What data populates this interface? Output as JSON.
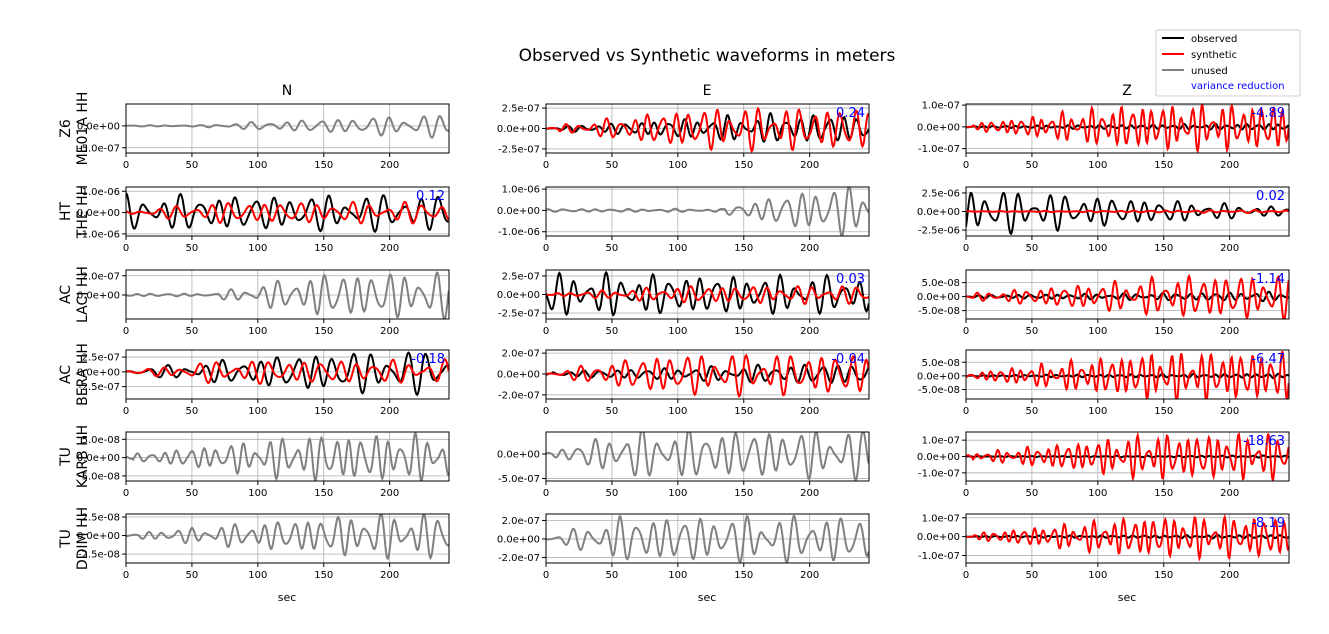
{
  "chart_data": {
    "type": "line",
    "title": "Observed vs Synthetic waveforms in meters",
    "column_titles": [
      "N",
      "E",
      "Z"
    ],
    "xlabel": "sec",
    "xlim": [
      0,
      245
    ],
    "xticks": [
      0,
      50,
      100,
      150,
      200
    ],
    "legend": {
      "placement": "top-right",
      "entries": [
        {
          "label": "observed",
          "color": "#000000"
        },
        {
          "label": "synthetic",
          "color": "#ff0000"
        },
        {
          "label": "unused",
          "color": "#808080"
        },
        {
          "label": "variance reduction",
          "color": "#0000ff"
        }
      ]
    },
    "stations": [
      {
        "label": "Z6\nME01A HH",
        "panels": [
          {
            "unused": true,
            "ylim": [
              -6.2e-07,
              5e-07
            ],
            "yticks": [
              {
                "v": 0,
                "t": "0.0e+00"
              },
              {
                "v": -5e-07,
                "t": "-5.0e-07"
              }
            ],
            "vr": "",
            "seed": 11,
            "onset": 60,
            "growth": 1.0,
            "period": 13,
            "obs_amp": 2.5e-07,
            "syn_amp": 0,
            "syn_growth": 0
          },
          {
            "unused": false,
            "ylim": [
              -3e-07,
              3e-07
            ],
            "yticks": [
              {
                "v": 2.5e-07,
                "t": "2.5e-07"
              },
              {
                "v": 0,
                "t": "0.0e+00"
              },
              {
                "v": -2.5e-07,
                "t": "-2.5e-07"
              }
            ],
            "vr": "0.24",
            "seed": 12,
            "onset": 10,
            "growth": 1.3,
            "period": 11,
            "obs_amp": 1.8e-07,
            "syn_amp": 2.6e-07,
            "syn_growth": 2.0
          },
          {
            "unused": false,
            "ylim": [
              -1.2e-07,
              1.05e-07
            ],
            "yticks": [
              {
                "v": 1e-07,
                "t": "1.0e-07"
              },
              {
                "v": 0,
                "t": "0.0e+00"
              },
              {
                "v": -1e-07,
                "t": "-1.0e-07"
              }
            ],
            "vr": "-4.89",
            "seed": 13,
            "onset": 5,
            "growth": 0.4,
            "period": 8,
            "obs_amp": 3e-08,
            "syn_amp": 1.05e-07,
            "syn_growth": 1.7
          }
        ]
      },
      {
        "label": "HT\nTHE HH",
        "panels": [
          {
            "unused": false,
            "ylim": [
              -1.1e-06,
              1.2e-06
            ],
            "yticks": [
              {
                "v": 1e-06,
                "t": "1.0e-06"
              },
              {
                "v": 0,
                "t": "0.0e+00"
              },
              {
                "v": -1e-06,
                "t": "-1.0e-06"
              }
            ],
            "vr": "0.12",
            "seed": 21,
            "onset": 0,
            "growth": 0.0,
            "period": 14,
            "obs_amp": 1e-06,
            "syn_amp": 5e-07,
            "syn_growth": 3.0
          },
          {
            "unused": true,
            "ylim": [
              -1.2e-06,
              1.1e-06
            ],
            "yticks": [
              {
                "v": 1e-06,
                "t": "1.0e-06"
              },
              {
                "v": 0,
                "t": "0.0e+00"
              },
              {
                "v": -1e-06,
                "t": "-1.0e-06"
              }
            ],
            "vr": "",
            "seed": 22,
            "onset": 135,
            "growth": 1.2,
            "period": 12,
            "obs_amp": 1.2e-06,
            "syn_amp": 0,
            "syn_growth": 0
          },
          {
            "unused": false,
            "ylim": [
              -3.3e-06,
              3.3e-06
            ],
            "yticks": [
              {
                "v": 2.5e-06,
                "t": "2.5e-06"
              },
              {
                "v": 0,
                "t": "0.0e+00"
              },
              {
                "v": -2.5e-06,
                "t": "-2.5e-06"
              }
            ],
            "vr": "0.02",
            "seed": 23,
            "onset": 0,
            "growth": -1.2,
            "period": 12,
            "obs_amp": 3.2e-06,
            "syn_amp": 2e-07,
            "syn_growth": 1.0
          }
        ]
      },
      {
        "label": "AC\nLACI HH",
        "panels": [
          {
            "unused": true,
            "ylim": [
              -2.5e-07,
              2.6e-07
            ],
            "yticks": [
              {
                "v": 2e-07,
                "t": "2.0e-07"
              },
              {
                "v": 0,
                "t": "0.0e+00"
              }
            ],
            "vr": "",
            "seed": 31,
            "onset": 70,
            "growth": 1.8,
            "period": 12,
            "obs_amp": 2.4e-07,
            "syn_amp": 0,
            "syn_growth": 0
          },
          {
            "unused": false,
            "ylim": [
              -3.3e-07,
              3.3e-07
            ],
            "yticks": [
              {
                "v": 2.5e-07,
                "t": "2.5e-07"
              },
              {
                "v": 0,
                "t": "0.0e+00"
              },
              {
                "v": -2.5e-07,
                "t": "-2.5e-07"
              }
            ],
            "vr": "0.03",
            "seed": 32,
            "onset": 5,
            "growth": -0.2,
            "period": 12,
            "obs_amp": 2.9e-07,
            "syn_amp": 1.2e-07,
            "syn_growth": 2.0
          },
          {
            "unused": false,
            "ylim": [
              -8e-08,
              9.5e-08
            ],
            "yticks": [
              {
                "v": 5e-08,
                "t": "5.0e-08"
              },
              {
                "v": 0,
                "t": "0.0e+00"
              },
              {
                "v": -5e-08,
                "t": "-5.0e-08"
              }
            ],
            "vr": "-1.14",
            "seed": 33,
            "onset": 5,
            "growth": 0.3,
            "period": 10,
            "obs_amp": 4e-08,
            "syn_amp": 8e-08,
            "syn_growth": 1.2
          }
        ]
      },
      {
        "label": "AC\nBERA HH",
        "panels": [
          {
            "unused": false,
            "ylim": [
              -4.6e-07,
              3.7e-07
            ],
            "yticks": [
              {
                "v": 2.5e-07,
                "t": "2.5e-07"
              },
              {
                "v": 0,
                "t": "0.0e+00"
              },
              {
                "v": -2.5e-07,
                "t": "-2.5e-07"
              }
            ],
            "vr": "-0.18",
            "seed": 41,
            "onset": 5,
            "growth": 1.4,
            "period": 14,
            "obs_amp": 3.6e-07,
            "syn_amp": 2e-07,
            "syn_growth": 3.0
          },
          {
            "unused": false,
            "ylim": [
              -2.4e-07,
              2.3e-07
            ],
            "yticks": [
              {
                "v": 2e-07,
                "t": "2.0e-07"
              },
              {
                "v": 0,
                "t": "0.0e+00"
              },
              {
                "v": -2e-07,
                "t": "-2.0e-07"
              }
            ],
            "vr": "-0.04",
            "seed": 42,
            "onset": 5,
            "growth": 0.5,
            "period": 12,
            "obs_amp": 1.8e-07,
            "syn_amp": 2e-07,
            "syn_growth": 2.5
          },
          {
            "unused": false,
            "ylim": [
              -8.5e-08,
              9.5e-08
            ],
            "yticks": [
              {
                "v": 5e-08,
                "t": "5.0e-08"
              },
              {
                "v": 0,
                "t": "0.0e+00"
              },
              {
                "v": -5e-08,
                "t": "-5.0e-08"
              }
            ],
            "vr": "-6.47",
            "seed": 43,
            "onset": 5,
            "growth": 0.3,
            "period": 8,
            "obs_amp": 2e-08,
            "syn_amp": 9e-08,
            "syn_growth": 1.5
          }
        ]
      },
      {
        "label": "TU\nKARB HH",
        "panels": [
          {
            "unused": true,
            "ylim": [
              -6.4e-08,
              7e-08
            ],
            "yticks": [
              {
                "v": 5e-08,
                "t": "5.0e-08"
              },
              {
                "v": 0,
                "t": "0.0e+00"
              },
              {
                "v": -5e-08,
                "t": "-5.0e-08"
              }
            ],
            "vr": "",
            "seed": 51,
            "onset": 5,
            "growth": 1.5,
            "period": 10,
            "obs_amp": 6.5e-08,
            "syn_amp": 0,
            "syn_growth": 0
          },
          {
            "unused": true,
            "ylim": [
              -5.5e-07,
              4.5e-07
            ],
            "yticks": [
              {
                "v": 0,
                "t": "0.0e+00"
              },
              {
                "v": -5e-07,
                "t": "-5.0e-07"
              }
            ],
            "vr": "",
            "seed": 52,
            "onset": 5,
            "growth": 3.5,
            "period": 12,
            "obs_amp": 5e-07,
            "syn_amp": 0,
            "syn_growth": 0
          },
          {
            "unused": false,
            "ylim": [
              -1.5e-07,
              1.5e-07
            ],
            "yticks": [
              {
                "v": 1e-07,
                "t": "1.0e-07"
              },
              {
                "v": 0,
                "t": "0.0e+00"
              },
              {
                "v": -1e-07,
                "t": "-1.0e-07"
              }
            ],
            "vr": "-18.63",
            "seed": 53,
            "onset": 5,
            "growth": 0.3,
            "period": 8,
            "obs_amp": 1.5e-08,
            "syn_amp": 1.4e-07,
            "syn_growth": 1.5
          }
        ]
      },
      {
        "label": "TU\nDDIM HH",
        "panels": [
          {
            "unused": true,
            "ylim": [
              -3.7e-08,
              2.9e-08
            ],
            "yticks": [
              {
                "v": 2.5e-08,
                "t": "2.5e-08"
              },
              {
                "v": 0,
                "t": "0.0e+00"
              },
              {
                "v": -2.5e-08,
                "t": "-2.5e-08"
              }
            ],
            "vr": "",
            "seed": 61,
            "onset": 10,
            "growth": 1.2,
            "period": 11,
            "obs_amp": 3e-08,
            "syn_amp": 0,
            "syn_growth": 0
          },
          {
            "unused": true,
            "ylim": [
              -2.6e-07,
              2.7e-07
            ],
            "yticks": [
              {
                "v": 2e-07,
                "t": "2.0e-07"
              },
              {
                "v": 0,
                "t": "0.0e+00"
              },
              {
                "v": -2e-07,
                "t": "-2.0e-07"
              }
            ],
            "vr": "",
            "seed": 62,
            "onset": 5,
            "growth": 4.0,
            "period": 12,
            "obs_amp": 2.5e-07,
            "syn_amp": 0,
            "syn_growth": 0
          },
          {
            "unused": false,
            "ylim": [
              -1.4e-07,
              1.2e-07
            ],
            "yticks": [
              {
                "v": 1e-07,
                "t": "1.0e-07"
              },
              {
                "v": 0,
                "t": "0.0e+00"
              },
              {
                "v": -1e-07,
                "t": "-1.0e-07"
              }
            ],
            "vr": "-8.19",
            "seed": 63,
            "onset": 5,
            "growth": 0.3,
            "period": 8,
            "obs_amp": 2.5e-08,
            "syn_amp": 1.1e-07,
            "syn_growth": 1.6
          }
        ]
      }
    ]
  }
}
